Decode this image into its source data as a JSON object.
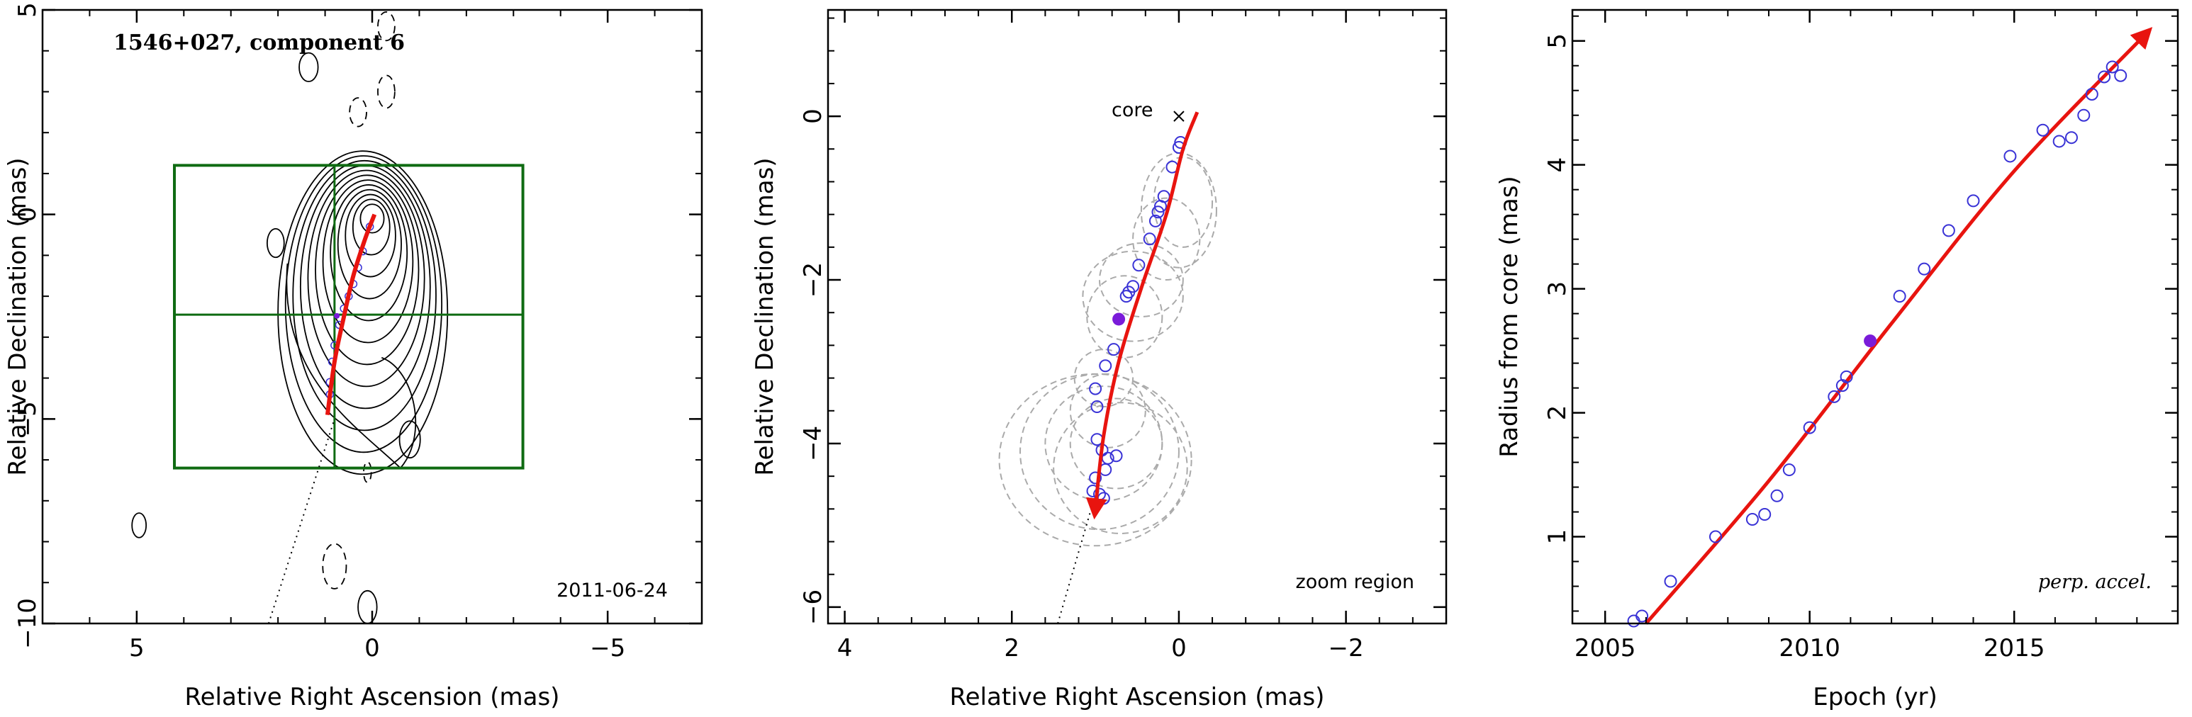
{
  "chart_data": [
    {
      "type": "scatter",
      "panel": "sky-map",
      "title": "1546+027, component 6",
      "date_label": "2011-06-24",
      "xlabel": "Relative Right Ascension (mas)",
      "ylabel": "Relative Declination (mas)",
      "xlim": [
        7,
        -7
      ],
      "ylim": [
        -10,
        5
      ],
      "xticks": [
        5,
        0,
        -5
      ],
      "yticks": [
        -10,
        -5,
        0,
        5
      ],
      "xtick_labels": [
        "5",
        "0",
        "−5"
      ],
      "ytick_labels": [
        "−10",
        "−5",
        "0",
        "5"
      ],
      "zoom_box": {
        "x": [
          4.2,
          -3.2
        ],
        "y": [
          -6.2,
          1.2
        ]
      },
      "zoom_box_crosshair": {
        "x": 0.8,
        "y": -2.45
      },
      "track_dotted": [
        [
          2.2,
          -10
        ],
        [
          0.8,
          -5
        ]
      ],
      "trajectory": [
        [
          -0.05,
          0
        ],
        [
          0.15,
          -0.6
        ],
        [
          0.4,
          -1.5
        ],
        [
          0.6,
          -2.5
        ],
        [
          0.8,
          -3.6
        ],
        [
          0.95,
          -4.9
        ]
      ],
      "positions": [
        [
          0.05,
          -0.3
        ],
        [
          0.2,
          -0.9
        ],
        [
          0.3,
          -1.3
        ],
        [
          0.4,
          -1.7
        ],
        [
          0.5,
          -2.0
        ],
        [
          0.6,
          -2.3
        ],
        [
          0.7,
          -2.7
        ],
        [
          0.8,
          -3.2
        ],
        [
          0.85,
          -3.6
        ],
        [
          0.9,
          -4.1
        ],
        [
          0.9,
          -4.4
        ]
      ],
      "current_position": [
        0.75,
        -2.48
      ],
      "contour_levels": 12,
      "colors": {
        "trajectory": "#e8140f",
        "box": "#0f6b12",
        "points": "#3a33d6",
        "current": "#7a1bd9"
      }
    },
    {
      "type": "scatter",
      "panel": "zoom-region",
      "annotation": "zoom region",
      "core_label": "core",
      "xlabel": "Relative Right Ascension (mas)",
      "ylabel": "Relative Declination (mas)",
      "xlim": [
        4.2,
        -3.2
      ],
      "ylim": [
        -6.2,
        1.3
      ],
      "xticks": [
        4,
        2,
        0,
        -2
      ],
      "yticks": [
        -6,
        -4,
        -2,
        0
      ],
      "xtick_labels": [
        "4",
        "2",
        "0",
        "−2"
      ],
      "ytick_labels": [
        "−6",
        "−4",
        "−2",
        "0"
      ],
      "core": [
        0,
        0
      ],
      "track_dotted": [
        [
          1.45,
          -6.2
        ],
        [
          1.05,
          -4.8
        ]
      ],
      "trajectory": [
        [
          -0.22,
          0.05
        ],
        [
          -0.05,
          -0.4
        ],
        [
          0.15,
          -1.2
        ],
        [
          0.45,
          -2.1
        ],
        [
          0.72,
          -3.0
        ],
        [
          0.9,
          -3.9
        ],
        [
          1.0,
          -4.8
        ]
      ],
      "positions": [
        [
          -0.02,
          -0.32
        ],
        [
          0.0,
          -0.38
        ],
        [
          0.08,
          -0.62
        ],
        [
          0.18,
          -0.98
        ],
        [
          0.22,
          -1.1
        ],
        [
          0.25,
          -1.17
        ],
        [
          0.28,
          -1.28
        ],
        [
          0.35,
          -1.5
        ],
        [
          0.48,
          -1.82
        ],
        [
          0.55,
          -2.08
        ],
        [
          0.6,
          -2.15
        ],
        [
          0.63,
          -2.2
        ],
        [
          0.78,
          -2.85
        ],
        [
          0.88,
          -3.05
        ],
        [
          1.0,
          -3.33
        ],
        [
          0.98,
          -3.55
        ],
        [
          0.98,
          -3.95
        ],
        [
          0.92,
          -4.08
        ],
        [
          0.85,
          -4.18
        ],
        [
          0.75,
          -4.15
        ],
        [
          0.88,
          -4.32
        ],
        [
          1.0,
          -4.42
        ],
        [
          1.03,
          -4.58
        ],
        [
          0.95,
          -4.62
        ],
        [
          0.9,
          -4.67
        ]
      ],
      "current_position": [
        0.72,
        -2.48
      ],
      "component_ellipses": [
        {
          "x": -0.05,
          "y": -1.05,
          "rx": 0.35,
          "ry": 0.55
        },
        {
          "x": 0.0,
          "y": -1.15,
          "rx": 0.45,
          "ry": 0.7
        },
        {
          "x": 0.15,
          "y": -1.5,
          "rx": 0.4,
          "ry": 0.5
        },
        {
          "x": 0.45,
          "y": -2.0,
          "rx": 0.5,
          "ry": 0.45
        },
        {
          "x": 0.55,
          "y": -2.2,
          "rx": 0.6,
          "ry": 0.55
        },
        {
          "x": 0.65,
          "y": -2.45,
          "rx": 0.45,
          "ry": 0.5
        },
        {
          "x": 0.9,
          "y": -3.2,
          "rx": 0.35,
          "ry": 0.35
        },
        {
          "x": 0.85,
          "y": -3.6,
          "rx": 0.45,
          "ry": 0.45
        },
        {
          "x": 0.9,
          "y": -4.0,
          "rx": 0.7,
          "ry": 0.7
        },
        {
          "x": 0.95,
          "y": -4.1,
          "rx": 0.95,
          "ry": 0.95
        },
        {
          "x": 1.0,
          "y": -4.2,
          "rx": 1.15,
          "ry": 1.05
        },
        {
          "x": 0.7,
          "y": -4.3,
          "rx": 0.8,
          "ry": 0.8
        },
        {
          "x": 0.75,
          "y": -4.0,
          "rx": 0.55,
          "ry": 0.55
        }
      ],
      "colors": {
        "trajectory": "#e8140f",
        "points": "#3a33d6",
        "current": "#7a1bd9",
        "ellipses": "#aaaaaa"
      }
    },
    {
      "type": "scatter",
      "panel": "radius-epoch",
      "annotation": "perp. accel.",
      "xlabel": "Epoch (yr)",
      "ylabel": "Radius from core (mas)",
      "xlim": [
        2004.2,
        2019.0
      ],
      "ylim": [
        0.3,
        5.25
      ],
      "xticks": [
        2005,
        2010,
        2015
      ],
      "yticks": [
        1,
        2,
        3,
        4,
        5
      ],
      "xtick_labels": [
        "2005",
        "2010",
        "2015"
      ],
      "ytick_labels": [
        "1",
        "2",
        "3",
        "4",
        "5"
      ],
      "x": [
        2005.7,
        2005.9,
        2006.6,
        2007.7,
        2008.6,
        2008.9,
        2009.2,
        2009.5,
        2010.0,
        2010.6,
        2010.8,
        2010.9,
        2012.2,
        2012.8,
        2013.4,
        2014.0,
        2014.9,
        2015.7,
        2016.1,
        2016.4,
        2016.7,
        2016.9,
        2017.2,
        2017.4,
        2017.6
      ],
      "y": [
        0.32,
        0.36,
        0.64,
        1.0,
        1.14,
        1.18,
        1.33,
        1.54,
        1.88,
        2.13,
        2.22,
        2.29,
        2.94,
        3.16,
        3.47,
        3.71,
        4.07,
        4.28,
        4.19,
        4.22,
        4.4,
        4.57,
        4.71,
        4.79,
        4.72
      ],
      "current_position": [
        2011.48,
        2.58
      ],
      "fit_line": [
        [
          2006.0,
          0.3
        ],
        [
          2009.0,
          1.45
        ],
        [
          2012.0,
          2.72
        ],
        [
          2015.0,
          3.95
        ],
        [
          2018.2,
          5.05
        ]
      ],
      "colors": {
        "fit": "#e8140f",
        "points": "#3a33d6",
        "current": "#7a1bd9"
      }
    }
  ]
}
